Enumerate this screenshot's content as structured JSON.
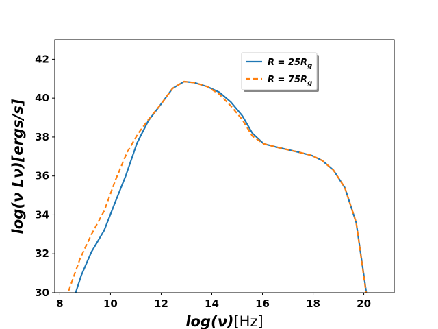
{
  "chart_data": {
    "type": "line",
    "title": "",
    "xlabel": {
      "main": "log(ν)",
      "unit": "[Hz]"
    },
    "ylabel": "log(ν Lν)[ergs/s]",
    "xlim": [
      7.8,
      21.2
    ],
    "ylim": [
      30,
      43
    ],
    "xticks": [
      8,
      10,
      12,
      14,
      16,
      18,
      20
    ],
    "yticks": [
      30,
      32,
      34,
      36,
      38,
      40,
      42
    ],
    "grid": false,
    "legend_position": "top-right",
    "series": [
      {
        "name": "R = 25R_g",
        "label_main": "R = 25R",
        "label_sub": "g",
        "color": "#1f77b4",
        "dash": "solid",
        "x": [
          8.6,
          8.85,
          9.25,
          9.75,
          10.2,
          10.6,
          11.05,
          11.5,
          12.0,
          12.45,
          12.9,
          13.3,
          13.8,
          14.3,
          14.75,
          15.2,
          15.6,
          16.05,
          16.5,
          17.0,
          17.5,
          17.95,
          18.35,
          18.8,
          19.25,
          19.7,
          20.1
        ],
        "y": [
          29.9,
          30.9,
          32.1,
          33.2,
          34.7,
          36.0,
          37.7,
          38.85,
          39.7,
          40.5,
          40.85,
          40.8,
          40.6,
          40.3,
          39.8,
          39.1,
          38.2,
          37.65,
          37.5,
          37.35,
          37.2,
          37.05,
          36.8,
          36.3,
          35.4,
          33.6,
          30.0
        ]
      },
      {
        "name": "R = 75R_g",
        "label_main": "R = 75R",
        "label_sub": "g",
        "color": "#ff7f0e",
        "dash": "dashed",
        "x": [
          8.35,
          8.8,
          9.25,
          9.75,
          10.2,
          10.65,
          11.1,
          11.5,
          12.0,
          12.45,
          12.9,
          13.3,
          13.8,
          14.3,
          14.75,
          15.2,
          15.6,
          16.05,
          16.5,
          17.0,
          17.5,
          17.95,
          18.35,
          18.8,
          19.25,
          19.7,
          20.1
        ],
        "y": [
          30.1,
          31.75,
          33.0,
          34.2,
          35.8,
          37.2,
          38.2,
          38.9,
          39.7,
          40.5,
          40.85,
          40.8,
          40.6,
          40.2,
          39.6,
          38.9,
          38.05,
          37.65,
          37.5,
          37.35,
          37.2,
          37.05,
          36.8,
          36.3,
          35.4,
          33.6,
          29.9
        ]
      }
    ]
  }
}
